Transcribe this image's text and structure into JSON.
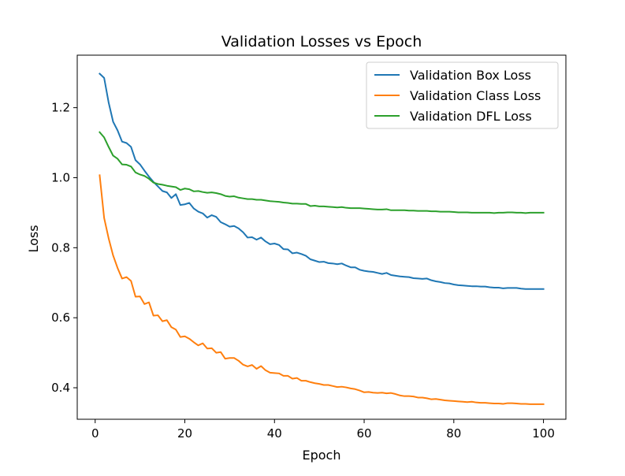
{
  "chart_data": {
    "type": "line",
    "title": "Validation Losses vs Epoch",
    "xlabel": "Epoch",
    "ylabel": "Loss",
    "xlim": [
      -4,
      105
    ],
    "ylim": [
      0.31,
      1.35
    ],
    "xticks": [
      0,
      20,
      40,
      60,
      80,
      100
    ],
    "yticks": [
      0.4,
      0.6,
      0.8,
      1.0,
      1.2
    ],
    "xtick_labels": [
      "0",
      "20",
      "40",
      "60",
      "80",
      "100"
    ],
    "ytick_labels": [
      "0.4",
      "0.6",
      "0.8",
      "1.0",
      "1.2"
    ],
    "grid": false,
    "legend_position": "top-right",
    "series": [
      {
        "name": "Validation Box Loss",
        "color": "#1f77b4",
        "x": [
          1,
          2,
          3,
          4,
          5,
          6,
          7,
          8,
          9,
          10,
          11,
          12,
          13,
          14,
          15,
          16,
          17,
          18,
          19,
          20,
          21,
          22,
          23,
          24,
          25,
          26,
          27,
          28,
          29,
          30,
          31,
          32,
          33,
          34,
          35,
          36,
          37,
          38,
          39,
          40,
          41,
          42,
          43,
          44,
          45,
          46,
          47,
          48,
          49,
          50,
          51,
          52,
          53,
          54,
          55,
          56,
          57,
          58,
          59,
          60,
          61,
          62,
          63,
          64,
          65,
          66,
          67,
          68,
          69,
          70,
          71,
          72,
          73,
          74,
          75,
          76,
          77,
          78,
          79,
          80,
          81,
          82,
          83,
          84,
          85,
          86,
          87,
          88,
          89,
          90,
          91,
          92,
          93,
          94,
          95,
          96,
          97,
          98,
          99,
          100
        ],
        "y": [
          1.297,
          1.285,
          1.215,
          1.16,
          1.135,
          1.103,
          1.099,
          1.088,
          1.05,
          1.038,
          1.02,
          1.003,
          0.988,
          0.975,
          0.962,
          0.958,
          0.942,
          0.953,
          0.922,
          0.924,
          0.928,
          0.912,
          0.903,
          0.898,
          0.886,
          0.893,
          0.888,
          0.873,
          0.867,
          0.86,
          0.862,
          0.855,
          0.844,
          0.829,
          0.83,
          0.823,
          0.829,
          0.818,
          0.81,
          0.812,
          0.808,
          0.796,
          0.795,
          0.784,
          0.786,
          0.782,
          0.777,
          0.767,
          0.763,
          0.759,
          0.76,
          0.756,
          0.755,
          0.753,
          0.755,
          0.749,
          0.744,
          0.744,
          0.737,
          0.734,
          0.732,
          0.731,
          0.728,
          0.725,
          0.728,
          0.722,
          0.72,
          0.718,
          0.717,
          0.716,
          0.713,
          0.712,
          0.711,
          0.712,
          0.707,
          0.704,
          0.702,
          0.699,
          0.698,
          0.695,
          0.693,
          0.692,
          0.691,
          0.69,
          0.69,
          0.689,
          0.689,
          0.687,
          0.686,
          0.686,
          0.684,
          0.685,
          0.685,
          0.685,
          0.683,
          0.682,
          0.682,
          0.682,
          0.682,
          0.682
        ]
      },
      {
        "name": "Validation Class Loss",
        "color": "#ff7f0e",
        "x": [
          1,
          2,
          3,
          4,
          5,
          6,
          7,
          8,
          9,
          10,
          11,
          12,
          13,
          14,
          15,
          16,
          17,
          18,
          19,
          20,
          21,
          22,
          23,
          24,
          25,
          26,
          27,
          28,
          29,
          30,
          31,
          32,
          33,
          34,
          35,
          36,
          37,
          38,
          39,
          40,
          41,
          42,
          43,
          44,
          45,
          46,
          47,
          48,
          49,
          50,
          51,
          52,
          53,
          54,
          55,
          56,
          57,
          58,
          59,
          60,
          61,
          62,
          63,
          64,
          65,
          66,
          67,
          68,
          69,
          70,
          71,
          72,
          73,
          74,
          75,
          76,
          77,
          78,
          79,
          80,
          81,
          82,
          83,
          84,
          85,
          86,
          87,
          88,
          89,
          90,
          91,
          92,
          93,
          94,
          95,
          96,
          97,
          98,
          99,
          100
        ],
        "y": [
          1.007,
          0.885,
          0.827,
          0.778,
          0.742,
          0.712,
          0.716,
          0.705,
          0.66,
          0.661,
          0.639,
          0.644,
          0.606,
          0.607,
          0.59,
          0.593,
          0.573,
          0.566,
          0.545,
          0.547,
          0.54,
          0.53,
          0.521,
          0.527,
          0.512,
          0.513,
          0.5,
          0.502,
          0.483,
          0.485,
          0.485,
          0.477,
          0.466,
          0.461,
          0.465,
          0.454,
          0.462,
          0.45,
          0.443,
          0.442,
          0.441,
          0.434,
          0.434,
          0.426,
          0.428,
          0.42,
          0.42,
          0.416,
          0.413,
          0.411,
          0.408,
          0.408,
          0.405,
          0.402,
          0.403,
          0.401,
          0.398,
          0.396,
          0.392,
          0.387,
          0.388,
          0.386,
          0.385,
          0.386,
          0.384,
          0.385,
          0.382,
          0.378,
          0.376,
          0.376,
          0.375,
          0.372,
          0.372,
          0.37,
          0.367,
          0.368,
          0.366,
          0.364,
          0.363,
          0.362,
          0.361,
          0.36,
          0.359,
          0.36,
          0.358,
          0.357,
          0.357,
          0.356,
          0.355,
          0.355,
          0.354,
          0.356,
          0.356,
          0.355,
          0.354,
          0.354,
          0.353,
          0.353,
          0.353,
          0.353
        ]
      },
      {
        "name": "Validation DFL Loss",
        "color": "#2ca02c",
        "x": [
          1,
          2,
          3,
          4,
          5,
          6,
          7,
          8,
          9,
          10,
          11,
          12,
          13,
          14,
          15,
          16,
          17,
          18,
          19,
          20,
          21,
          22,
          23,
          24,
          25,
          26,
          27,
          28,
          29,
          30,
          31,
          32,
          33,
          34,
          35,
          36,
          37,
          38,
          39,
          40,
          41,
          42,
          43,
          44,
          45,
          46,
          47,
          48,
          49,
          50,
          51,
          52,
          53,
          54,
          55,
          56,
          57,
          58,
          59,
          60,
          61,
          62,
          63,
          64,
          65,
          66,
          67,
          68,
          69,
          70,
          71,
          72,
          73,
          74,
          75,
          76,
          77,
          78,
          79,
          80,
          81,
          82,
          83,
          84,
          85,
          86,
          87,
          88,
          89,
          90,
          91,
          92,
          93,
          94,
          95,
          96,
          97,
          98,
          99,
          100
        ],
        "y": [
          1.13,
          1.115,
          1.088,
          1.063,
          1.054,
          1.038,
          1.037,
          1.032,
          1.015,
          1.009,
          1.005,
          0.997,
          0.986,
          0.982,
          0.98,
          0.977,
          0.975,
          0.973,
          0.965,
          0.969,
          0.967,
          0.961,
          0.962,
          0.959,
          0.957,
          0.958,
          0.956,
          0.953,
          0.948,
          0.946,
          0.947,
          0.943,
          0.941,
          0.939,
          0.939,
          0.937,
          0.937,
          0.935,
          0.933,
          0.932,
          0.931,
          0.929,
          0.928,
          0.926,
          0.926,
          0.925,
          0.925,
          0.919,
          0.92,
          0.918,
          0.918,
          0.917,
          0.916,
          0.915,
          0.916,
          0.914,
          0.913,
          0.913,
          0.913,
          0.912,
          0.911,
          0.91,
          0.909,
          0.909,
          0.91,
          0.907,
          0.907,
          0.907,
          0.907,
          0.906,
          0.906,
          0.905,
          0.905,
          0.905,
          0.904,
          0.904,
          0.903,
          0.903,
          0.903,
          0.902,
          0.901,
          0.901,
          0.901,
          0.9,
          0.9,
          0.9,
          0.9,
          0.9,
          0.899,
          0.9,
          0.9,
          0.901,
          0.901,
          0.9,
          0.9,
          0.899,
          0.9,
          0.9,
          0.9,
          0.9
        ]
      }
    ]
  }
}
